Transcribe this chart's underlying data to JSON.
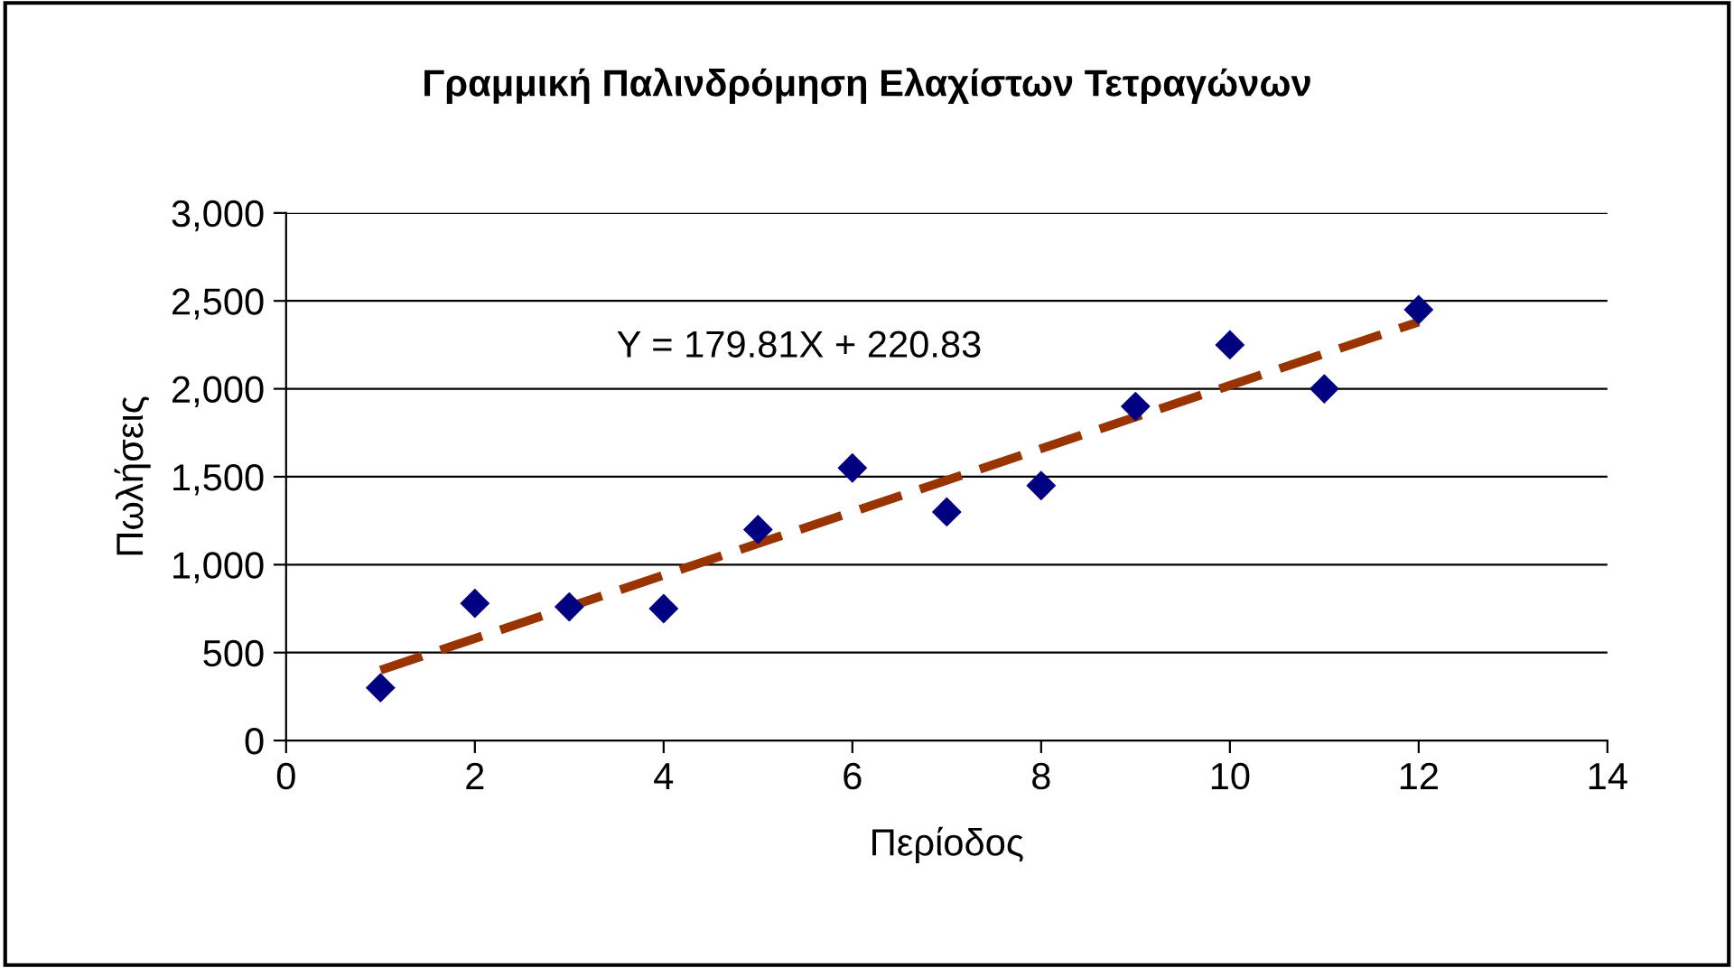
{
  "chart_data": {
    "type": "scatter",
    "title": "Γραμμική Παλινδρόμηση Ελαχίστων Τετραγώνων",
    "xlabel": "Περίοδος",
    "ylabel": "Πωλήσεις",
    "annotations": [
      "Y = 179.81X + 220.83"
    ],
    "series": [
      {
        "color": "#000080",
        "marker": "diamond",
        "x": [
          1,
          2,
          3,
          4,
          5,
          6,
          7,
          8,
          9,
          10,
          11,
          12
        ],
        "values": [
          300,
          780,
          760,
          750,
          1200,
          1550,
          1300,
          1450,
          1900,
          2250,
          2000,
          2450
        ]
      },
      {
        "type": "line",
        "color": "#993300",
        "line_style": "dashed",
        "marker": "none",
        "x": [
          1,
          12
        ],
        "values": [
          400,
          2380
        ]
      }
    ],
    "xlim": [
      0,
      14
    ],
    "xticks": [
      0,
      2,
      4,
      6,
      8,
      10,
      12,
      14
    ],
    "ylim": [
      0,
      3000
    ],
    "yticks": [
      {
        "value": 0,
        "label": "0"
      },
      {
        "value": 500,
        "label": "500"
      },
      {
        "value": 1000,
        "label": "1,000"
      },
      {
        "value": 1500,
        "label": "1,500"
      },
      {
        "value": 2000,
        "label": "2,000"
      },
      {
        "value": 2500,
        "label": "2,500"
      },
      {
        "value": 3000,
        "label": "3,000"
      }
    ],
    "grid": "y",
    "legend": false
  }
}
